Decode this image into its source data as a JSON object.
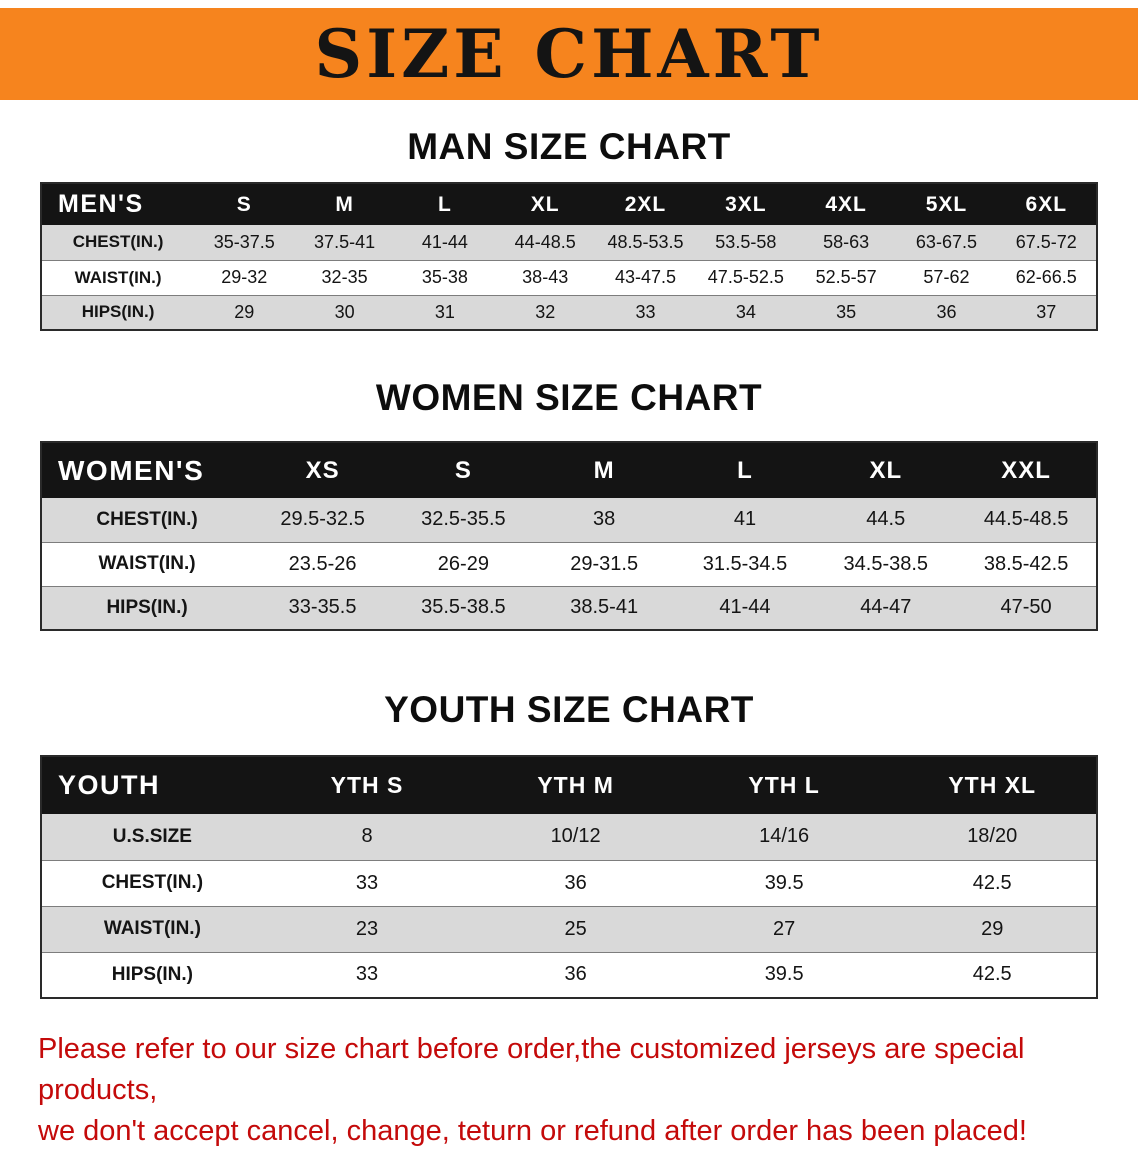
{
  "banner": {
    "title": "SIZE CHART",
    "bg_color": "#F6841E"
  },
  "sections": [
    {
      "heading": "MAN SIZE CHART",
      "header": [
        "MEN'S",
        "S",
        "M",
        "L",
        "XL",
        "2XL",
        "3XL",
        "4XL",
        "5XL",
        "6XL"
      ],
      "rows": [
        [
          "CHEST(IN.)",
          "35-37.5",
          "37.5-41",
          "41-44",
          "44-48.5",
          "48.5-53.5",
          "53.5-58",
          "58-63",
          "63-67.5",
          "67.5-72"
        ],
        [
          "WAIST(IN.)",
          "29-32",
          "32-35",
          "35-38",
          "38-43",
          "43-47.5",
          "47.5-52.5",
          "52.5-57",
          "57-62",
          "62-66.5"
        ],
        [
          "HIPS(IN.)",
          "29",
          "30",
          "31",
          "32",
          "33",
          "34",
          "35",
          "36",
          "37"
        ]
      ]
    },
    {
      "heading": "WOMEN SIZE CHART",
      "header": [
        "WOMEN'S",
        "XS",
        "S",
        "M",
        "L",
        "XL",
        "XXL"
      ],
      "rows": [
        [
          "CHEST(IN.)",
          "29.5-32.5",
          "32.5-35.5",
          "38",
          "41",
          "44.5",
          "44.5-48.5"
        ],
        [
          "WAIST(IN.)",
          "23.5-26",
          "26-29",
          "29-31.5",
          "31.5-34.5",
          "34.5-38.5",
          "38.5-42.5"
        ],
        [
          "HIPS(IN.)",
          "33-35.5",
          "35.5-38.5",
          "38.5-41",
          "41-44",
          "44-47",
          "47-50"
        ]
      ]
    },
    {
      "heading": "YOUTH SIZE CHART",
      "header": [
        "YOUTH",
        "YTH S",
        "YTH M",
        "YTH L",
        "YTH XL"
      ],
      "rows": [
        [
          "U.S.SIZE",
          "8",
          "10/12",
          "14/16",
          "18/20"
        ],
        [
          "CHEST(IN.)",
          "33",
          "36",
          "39.5",
          "42.5"
        ],
        [
          "WAIST(IN.)",
          "23",
          "25",
          "27",
          "29"
        ],
        [
          "HIPS(IN.)",
          "33",
          "36",
          "39.5",
          "42.5"
        ]
      ]
    }
  ],
  "disclaimer": {
    "line1": "Please refer to our size chart before order,the customized jerseys are special products,",
    "line2": "we don't accept cancel, change, teturn or refund after order has been placed!",
    "color": "#C40A0A"
  }
}
